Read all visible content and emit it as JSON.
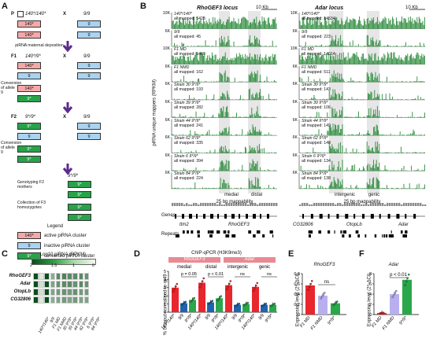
{
  "panels": {
    "A": "A",
    "B": "B",
    "C": "C",
    "D": "D",
    "E": "E",
    "F": "F"
  },
  "panelA": {
    "p_label": "P",
    "p_female": "140*/140*",
    "cross": "X",
    "p_male": "9/9",
    "cluster_140": "140*",
    "cluster_9": "9",
    "cluster_9s": "9*",
    "pirna_maternal": "piRNA maternal deposition",
    "f1_label": "F1",
    "f1_geno": "140*/9*",
    "conv9": "Conversion of allele 9",
    "f2_label": "F2",
    "f2_geno": "9*/9*",
    "conv9b": "Conversion of allele 9",
    "f2_selected": "9*/9*",
    "genotyping": "Genotyping F2 mothers",
    "collection": "Collection of F3 homozygotes",
    "legend": "Legend",
    "leg_active": "active piRNA cluster",
    "leg_inactive": "inactive piRNA cluster",
    "leg_converted": "converted piRNA cluster"
  },
  "panelB": {
    "ylabel": "piRNA unique mappers (RPKM)",
    "left_title": "RhoGEF3 locus",
    "right_title": "Adar locus",
    "scale": "10 Kb",
    "tracks_left": [
      {
        "axis": "10K",
        "name": "140*/140*",
        "mapped": "all mapped: 5423"
      },
      {
        "axis": "6K",
        "name": "9/9",
        "mapped": "all mapped: 45"
      },
      {
        "axis": "10K",
        "name": "F1 MD",
        "mapped": "all mapped: 5449"
      },
      {
        "axis": "6K",
        "name": "F1 NMD",
        "mapped": "all mapped: 162"
      },
      {
        "axis": "6K",
        "name": "Strain 30 9*/9*",
        "mapped": "all mapped: 193"
      },
      {
        "axis": "6K",
        "name": "Strain 39 9*/9*",
        "mapped": "all mapped: 282"
      },
      {
        "axis": "6K",
        "name": "Strain 44 9*/9*",
        "mapped": "all mapped: 241"
      },
      {
        "axis": "6K",
        "name": "Strain 62 9*/9*",
        "mapped": "all mapped: 335"
      },
      {
        "axis": "6K",
        "name": "Strain 6 9*/9*",
        "mapped": "all mapped: 394"
      },
      {
        "axis": "6K",
        "name": "Strain 84 9*/9*",
        "mapped": "all mapped: 224"
      }
    ],
    "tracks_right": [
      {
        "axis": "10K",
        "name": "140*/140*",
        "mapped": "all mapped: 14534"
      },
      {
        "axis": "6K",
        "name": "9/9",
        "mapped": "all mapped: 223"
      },
      {
        "axis": "10K",
        "name": "F1 MD",
        "mapped": "all mapped: 14014"
      },
      {
        "axis": "6K",
        "name": "F1 NMD",
        "mapped": "all mapped: 511"
      },
      {
        "axis": "6K",
        "name": "Strain 30 9*/9*",
        "mapped": "all mapped: 143"
      },
      {
        "axis": "6K",
        "name": "Strain 39 9*/9*",
        "mapped": "all mapped: 106"
      },
      {
        "axis": "6K",
        "name": "Strain 44 9*/9*",
        "mapped": "all mapped: 149"
      },
      {
        "axis": "6K",
        "name": "Strain 62 9*/9*",
        "mapped": "all mapped: 148"
      },
      {
        "axis": "6K",
        "name": "Strain 6 9*/9*",
        "mapped": "all mapped: 134"
      },
      {
        "axis": "6K",
        "name": "Strain 84 9*/9*",
        "mapped": "all mapped: 138"
      }
    ],
    "left_regions": [
      "medial",
      "distal"
    ],
    "right_regions": [
      "intergenic",
      "genic"
    ],
    "mappability": "25 bp mappability",
    "genes_label": "Genes",
    "repeats_label": "Repeats",
    "left_genes": [
      "ttm2",
      "RhoGEF3"
    ],
    "right_genes": [
      "CG32806",
      "OtopLb",
      "Adar"
    ]
  },
  "panelC": {
    "title": "Log10 piRNA (RPKM)",
    "scale_ticks": [
      "2",
      "1.5",
      "1",
      "0"
    ],
    "rows": [
      "RhoGEF3",
      "Adar",
      "OtopLb",
      "CG32806"
    ],
    "cols": [
      "140*/140*",
      "9/9",
      "F1 MD",
      "F1 NMD",
      "30 9*/9*",
      "39 9*/9*",
      "44 9*/9*",
      "62 9*/9*",
      "6 9*/9*",
      "84 9*/9*"
    ],
    "values": [
      [
        2.0,
        0.2,
        2.0,
        0.9,
        1.3,
        1.4,
        1.3,
        1.3,
        1.3,
        1.2
      ],
      [
        2.0,
        0.3,
        2.0,
        1.0,
        1.2,
        1.3,
        1.3,
        1.2,
        1.3,
        1.2
      ],
      [
        2.0,
        0.3,
        2.0,
        1.0,
        1.1,
        1.2,
        1.1,
        1.2,
        1.1,
        1.1
      ],
      [
        2.0,
        0.2,
        2.0,
        0.9,
        1.0,
        1.1,
        1.0,
        1.1,
        1.0,
        1.0
      ]
    ]
  },
  "chart_data": [
    {
      "type": "bar",
      "title": "ChIP-qPCR (H3K9me3)",
      "ylabel": "% of input normalized to rp49",
      "ylim": [
        0,
        5
      ],
      "yticks": [
        "0",
        "1",
        "2",
        "3",
        "4",
        "5"
      ],
      "groups": [
        {
          "locus": "RhoGEF3",
          "region": "medial",
          "categories": [
            "140*/140*",
            "9/9",
            "9*/9*"
          ],
          "values": [
            3.0,
            1.1,
            1.5
          ],
          "p": "p = 0.05"
        },
        {
          "locus": "RhoGEF3",
          "region": "distal",
          "categories": [
            "140*/140*",
            "9/9",
            "9*/9*"
          ],
          "values": [
            3.6,
            1.2,
            1.7
          ],
          "p": "p < 0.01"
        },
        {
          "locus": "Adar",
          "region": "intergenic",
          "categories": [
            "140*/140*",
            "9/9",
            "9*/9*"
          ],
          "values": [
            3.3,
            0.9,
            1.0
          ],
          "p": "ns"
        },
        {
          "locus": "Adar",
          "region": "genic",
          "categories": [
            "140*/140*",
            "9/9",
            "9*/9*"
          ],
          "values": [
            3.1,
            0.9,
            0.9
          ],
          "p": "ns"
        }
      ]
    },
    {
      "type": "bar",
      "title": "RhoGEF3",
      "ylabel": "Expression level (2^-ΔCt)",
      "ylim": [
        0,
        0.8
      ],
      "yticks": [
        "0",
        "0.2",
        "0.4",
        "0.6",
        "0.8"
      ],
      "categories": [
        "F1 MD",
        "F1 NMD",
        "9*/9*"
      ],
      "values": [
        0.57,
        0.37,
        0.22
      ],
      "annotation": "ns"
    },
    {
      "type": "bar",
      "title": "Adar",
      "ylabel": "Expression level (2^-ΔCt)",
      "ylim": [
        0,
        8
      ],
      "yticks": [
        "0",
        "2",
        "4",
        "6",
        "8"
      ],
      "categories": [
        "F1 MD",
        "F1 NMD",
        "9*/9*"
      ],
      "values": [
        0.3,
        4.0,
        6.8
      ],
      "annotation": "p < 0.01"
    }
  ],
  "colors": {
    "red": "#e8262d",
    "blue": "#1f63ad",
    "green": "#2aa64b",
    "pink": "#f4a9a8",
    "lightblue": "#a9d3f1",
    "purple": "#b8b0ee",
    "track_green": "#2a8b3a",
    "locus_header": "#e98a92"
  }
}
